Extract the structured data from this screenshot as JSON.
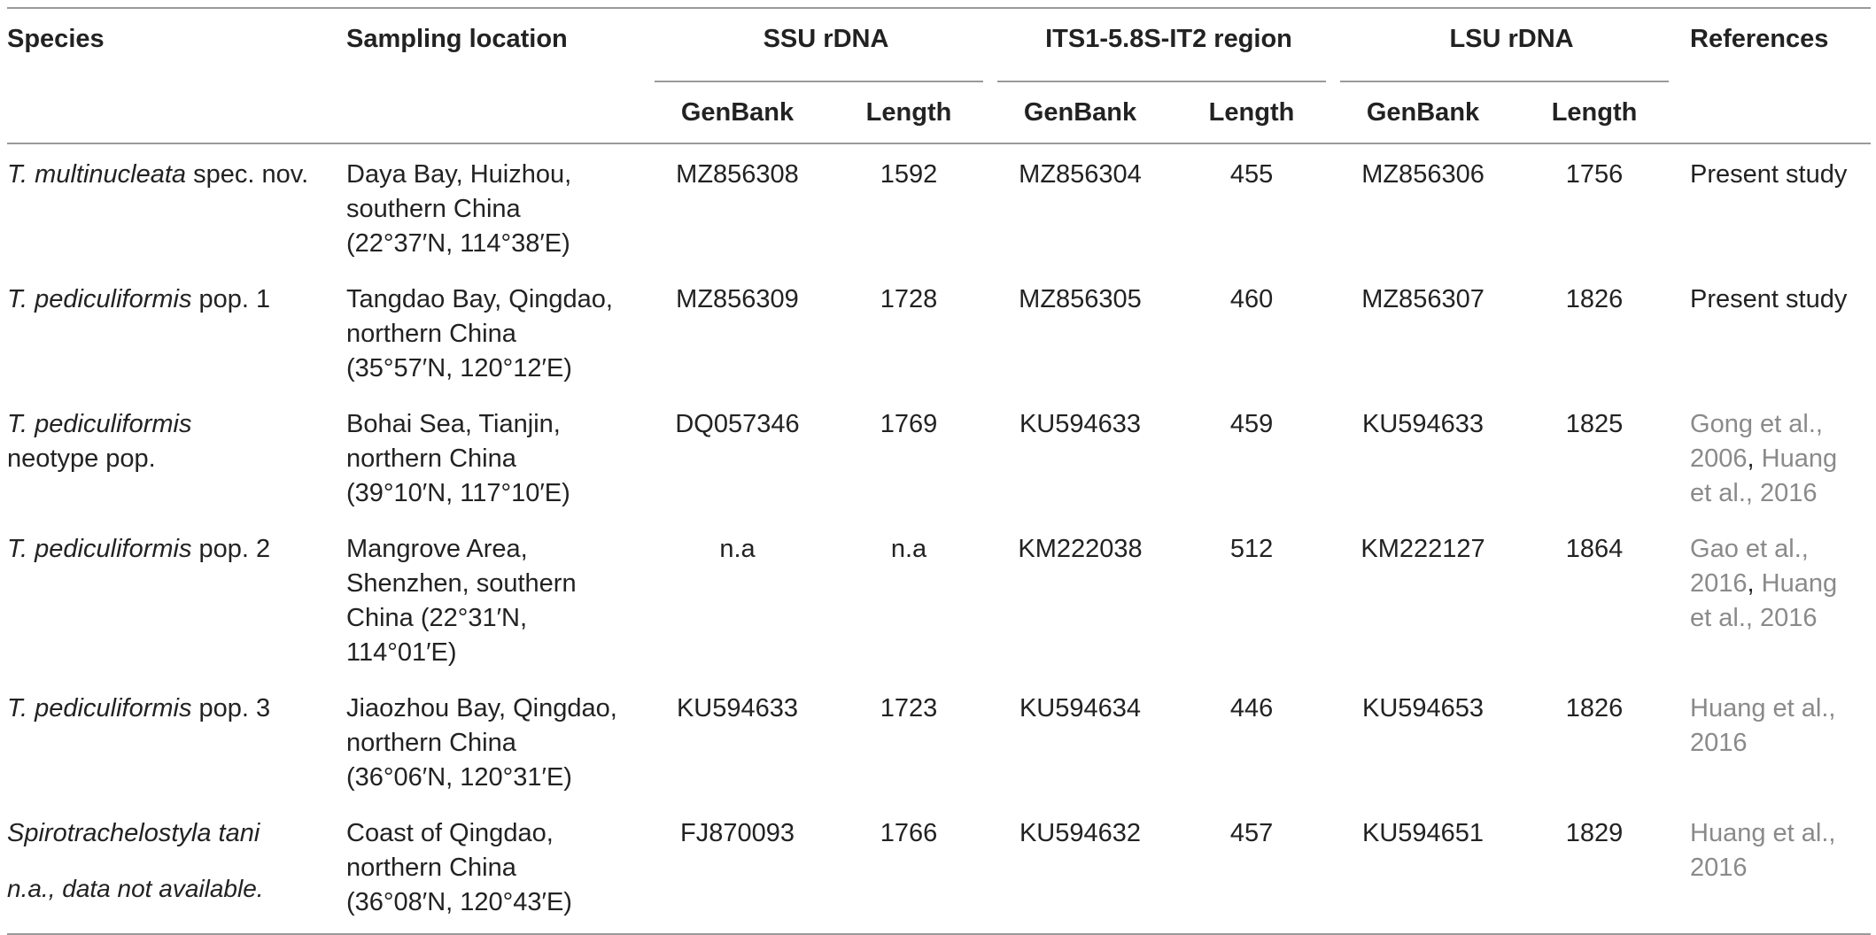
{
  "table": {
    "headers": {
      "species": "Species",
      "sampling_location": "Sampling location",
      "ssu": "SSU rDNA",
      "its": "ITS1-5.8S-IT2 region",
      "lsu": "LSU rDNA",
      "references": "References",
      "genbank": "GenBank",
      "length": "Length"
    },
    "rows": [
      {
        "species_italic": "T. multinucleata",
        "species_rest": " spec. nov.",
        "location_lines": [
          "Daya Bay, Huizhou,",
          "southern China",
          "(22°37′N, 114°38′E)"
        ],
        "ssu_genbank": "MZ856308",
        "ssu_length": "1592",
        "its_genbank": "MZ856304",
        "its_length": "455",
        "lsu_genbank": "MZ856306",
        "lsu_length": "1756",
        "reference_text": "Present study"
      },
      {
        "species_italic": "T. pediculiformis",
        "species_rest": " pop. 1",
        "location_lines": [
          "Tangdao Bay, Qingdao,",
          "northern China",
          "(35°57′N, 120°12′E)"
        ],
        "ssu_genbank": "MZ856309",
        "ssu_length": "1728",
        "its_genbank": "MZ856305",
        "its_length": "460",
        "lsu_genbank": "MZ856307",
        "lsu_length": "1826",
        "reference_text": "Present study"
      },
      {
        "species_italic": "T. pediculiformis",
        "species_rest": "neotype pop.",
        "location_lines": [
          "Bohai Sea, Tianjin,",
          "northern China",
          "(39°10′N, 117°10′E)"
        ],
        "ssu_genbank": "DQ057346",
        "ssu_length": "1769",
        "its_genbank": "KU594633",
        "its_length": "459",
        "lsu_genbank": "KU594633",
        "lsu_length": "1825",
        "reference_lines": [
          "Gong et al.,",
          "2006",
          ", Huang",
          "et al., 2016"
        ]
      },
      {
        "species_italic": "T. pediculiformis",
        "species_rest": " pop. 2",
        "location_lines": [
          "Mangrove Area,",
          "Shenzhen, southern",
          "China (22°31′N,",
          "114°01′E)"
        ],
        "ssu_genbank": "n.a",
        "ssu_length": "n.a",
        "its_genbank": "KM222038",
        "its_length": "512",
        "lsu_genbank": "KM222127",
        "lsu_length": "1864",
        "reference_lines": [
          "Gao et al.,",
          "2016",
          ", Huang",
          "et al., 2016"
        ]
      },
      {
        "species_italic": "T. pediculiformis",
        "species_rest": " pop. 3",
        "location_lines": [
          "Jiaozhou Bay, Qingdao,",
          "northern China",
          "(36°06′N, 120°31′E)"
        ],
        "ssu_genbank": "KU594633",
        "ssu_length": "1723",
        "its_genbank": "KU594634",
        "its_length": "446",
        "lsu_genbank": "KU594653",
        "lsu_length": "1826",
        "reference_lines": [
          "Huang et al.,",
          "2016"
        ]
      },
      {
        "species_italic": "Spirotrachelostyla tani",
        "species_rest": "",
        "location_lines": [
          "Coast of Qingdao,",
          "northern China",
          "(36°08′N, 120°43′E)"
        ],
        "ssu_genbank": "FJ870093",
        "ssu_length": "1766",
        "its_genbank": "KU594632",
        "its_length": "457",
        "lsu_genbank": "KU594651",
        "lsu_length": "1829",
        "reference_lines": [
          "Huang et al.,",
          "2016"
        ]
      }
    ]
  },
  "footnote": "n.a., data not available.",
  "colors": {
    "text": "#222222",
    "reference_link": "#8a8a8a",
    "rule": "#9a9a9a"
  }
}
